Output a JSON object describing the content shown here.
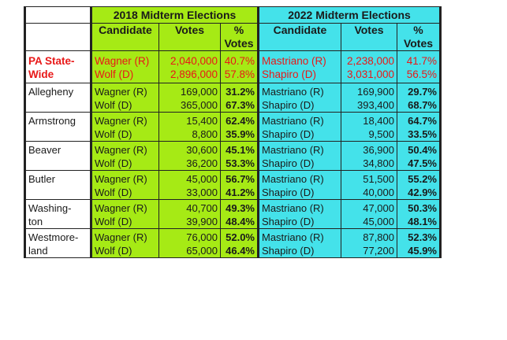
{
  "chart_data": {
    "type": "table",
    "header_2018": "2018 Midterm Elections",
    "header_2022": "2022 Midterm Elections",
    "col_candidate": "Candidate",
    "col_votes": "Votes",
    "col_pct_1": "%",
    "col_pct_2": "Votes",
    "statewide": {
      "label_1": "PA State-",
      "label_2": "Wide",
      "e2018": [
        {
          "candidate": "Wagner (R)",
          "votes": "2,040,000",
          "pct": "40.7%"
        },
        {
          "candidate": "Wolf (D)",
          "votes": "2,896,000",
          "pct": "57.8%"
        }
      ],
      "e2022": [
        {
          "candidate": "Mastriano (R)",
          "votes": "2,238,000",
          "pct": "41.7%"
        },
        {
          "candidate": "Shapiro (D)",
          "votes": "3,031,000",
          "pct": "56.5%"
        }
      ]
    },
    "counties": [
      {
        "name_1": "Allegheny",
        "name_2": "",
        "e2018": [
          {
            "candidate": "Wagner (R)",
            "votes": "169,000",
            "pct": "31.2%"
          },
          {
            "candidate": "Wolf (D)",
            "votes": "365,000",
            "pct": "67.3%"
          }
        ],
        "e2022": [
          {
            "candidate": "Mastriano (R)",
            "votes": "169,900",
            "pct": "29.7%"
          },
          {
            "candidate": "Shapiro (D)",
            "votes": "393,400",
            "pct": "68.7%"
          }
        ]
      },
      {
        "name_1": "Armstrong",
        "name_2": "",
        "e2018": [
          {
            "candidate": "Wagner (R)",
            "votes": "15,400",
            "pct": "62.4%"
          },
          {
            "candidate": "Wolf (D)",
            "votes": "8,800",
            "pct": "35.9%"
          }
        ],
        "e2022": [
          {
            "candidate": "Mastriano (R)",
            "votes": "18,400",
            "pct": "64.7%"
          },
          {
            "candidate": "Shapiro (D)",
            "votes": "9,500",
            "pct": "33.5%"
          }
        ]
      },
      {
        "name_1": "Beaver",
        "name_2": "",
        "e2018": [
          {
            "candidate": "Wagner (R)",
            "votes": "30,600",
            "pct": "45.1%"
          },
          {
            "candidate": "Wolf (D)",
            "votes": "36,200",
            "pct": "53.3%"
          }
        ],
        "e2022": [
          {
            "candidate": "Mastriano (R)",
            "votes": "36,900",
            "pct": "50.4%"
          },
          {
            "candidate": "Shapiro (D)",
            "votes": "34,800",
            "pct": "47.5%"
          }
        ]
      },
      {
        "name_1": "Butler",
        "name_2": "",
        "e2018": [
          {
            "candidate": "Wagner (R)",
            "votes": "45,000",
            "pct": "56.7%"
          },
          {
            "candidate": "Wolf (D)",
            "votes": "33,000",
            "pct": "41.2%"
          }
        ],
        "e2022": [
          {
            "candidate": "Mastriano (R)",
            "votes": "51,500",
            "pct": "55.2%"
          },
          {
            "candidate": "Shapiro (D)",
            "votes": "40,000",
            "pct": "42.9%"
          }
        ]
      },
      {
        "name_1": "Washing-",
        "name_2": "ton",
        "e2018": [
          {
            "candidate": "Wagner (R)",
            "votes": "40,700",
            "pct": "49.3%"
          },
          {
            "candidate": "Wolf (D)",
            "votes": "39,900",
            "pct": "48.4%"
          }
        ],
        "e2022": [
          {
            "candidate": "Mastriano (R)",
            "votes": "47,000",
            "pct": "50.3%"
          },
          {
            "candidate": "Shapiro (D)",
            "votes": "45,000",
            "pct": "48.1%"
          }
        ]
      },
      {
        "name_1": "Westmore-",
        "name_2": "land",
        "e2018": [
          {
            "candidate": "Wagner (R)",
            "votes": "76,000",
            "pct": "52.0%"
          },
          {
            "candidate": "Wolf (D)",
            "votes": "65,000",
            "pct": "46.4%"
          }
        ],
        "e2022": [
          {
            "candidate": "Mastriano (R)",
            "votes": "87,800",
            "pct": "52.3%"
          },
          {
            "candidate": "Shapiro (D)",
            "votes": "77,200",
            "pct": "45.9%"
          }
        ]
      }
    ]
  }
}
